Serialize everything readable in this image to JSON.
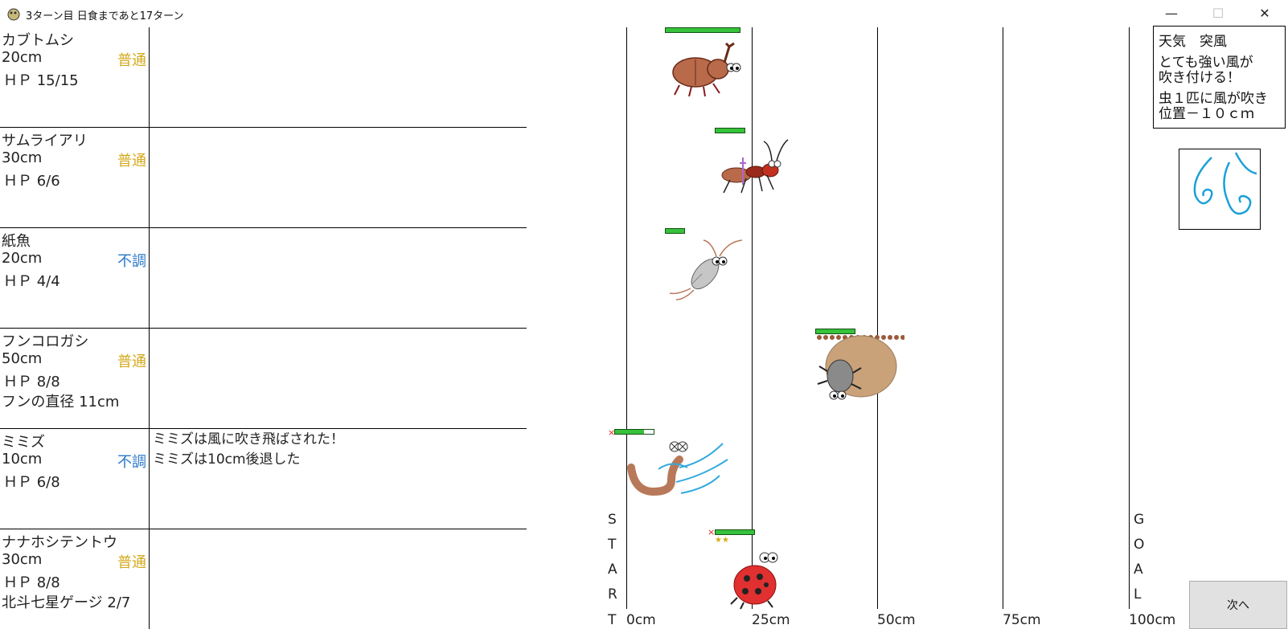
{
  "window": {
    "title": "3ターン目 日食まであと17ターン",
    "minimize_glyph": "—",
    "maximize_glyph": "☐",
    "close_glyph": "✕",
    "icon": "bug-app-icon"
  },
  "bugs": [
    {
      "name": "カブトムシ",
      "distance": "20cm",
      "condition": "普通",
      "condition_color": "#d4a91a",
      "hp": "ＨＰ 15/15",
      "hp_fraction": 1.0,
      "extra": "",
      "log": []
    },
    {
      "name": "サムライアリ",
      "distance": "30cm",
      "condition": "普通",
      "condition_color": "#d4a91a",
      "hp": "ＨＰ 6/6",
      "hp_fraction": 1.0,
      "extra": "",
      "log": []
    },
    {
      "name": "紙魚",
      "distance": "20cm",
      "condition": "不調",
      "condition_color": "#2878c8",
      "hp": "ＨＰ 4/4",
      "hp_fraction": 1.0,
      "extra": "",
      "log": []
    },
    {
      "name": "フンコロガシ",
      "distance": "50cm",
      "condition": "普通",
      "condition_color": "#d4a91a",
      "hp": "ＨＰ 8/8",
      "hp_fraction": 1.0,
      "extra": "フンの直径 11cm",
      "log": []
    },
    {
      "name": "ミミズ",
      "distance": "10cm",
      "condition": "不調",
      "condition_color": "#2878c8",
      "hp": "ＨＰ 6/8",
      "hp_fraction": 0.75,
      "extra": "",
      "log": [
        "ミミズは風に吹き飛ばされた！",
        "ミミズは10cm後退した"
      ]
    },
    {
      "name": "ナナホシテントウ",
      "distance": "30cm",
      "condition": "普通",
      "condition_color": "#d4a91a",
      "hp": "ＨＰ 8/8",
      "hp_fraction": 1.0,
      "extra": "北斗七星ゲージ 2/7",
      "log": []
    }
  ],
  "track": {
    "ticks": [
      "0cm",
      "25cm",
      "50cm",
      "75cm",
      "100cm"
    ],
    "start_letters": [
      "S",
      "T",
      "A",
      "R",
      "T"
    ],
    "goal_letters": [
      "G",
      "O",
      "A",
      "L"
    ]
  },
  "weather": {
    "title": "天気　突風",
    "description": [
      "とても強い風が",
      "吹き付ける！"
    ],
    "effect": [
      "虫１匹に風が吹き",
      "位置－１０ｃｍ"
    ],
    "icon": "wind-icon"
  },
  "next_button": {
    "label": "次へ"
  },
  "colors": {
    "hp_bar": "#36c23a",
    "normal": "#d4a91a",
    "bad": "#2878c8"
  }
}
